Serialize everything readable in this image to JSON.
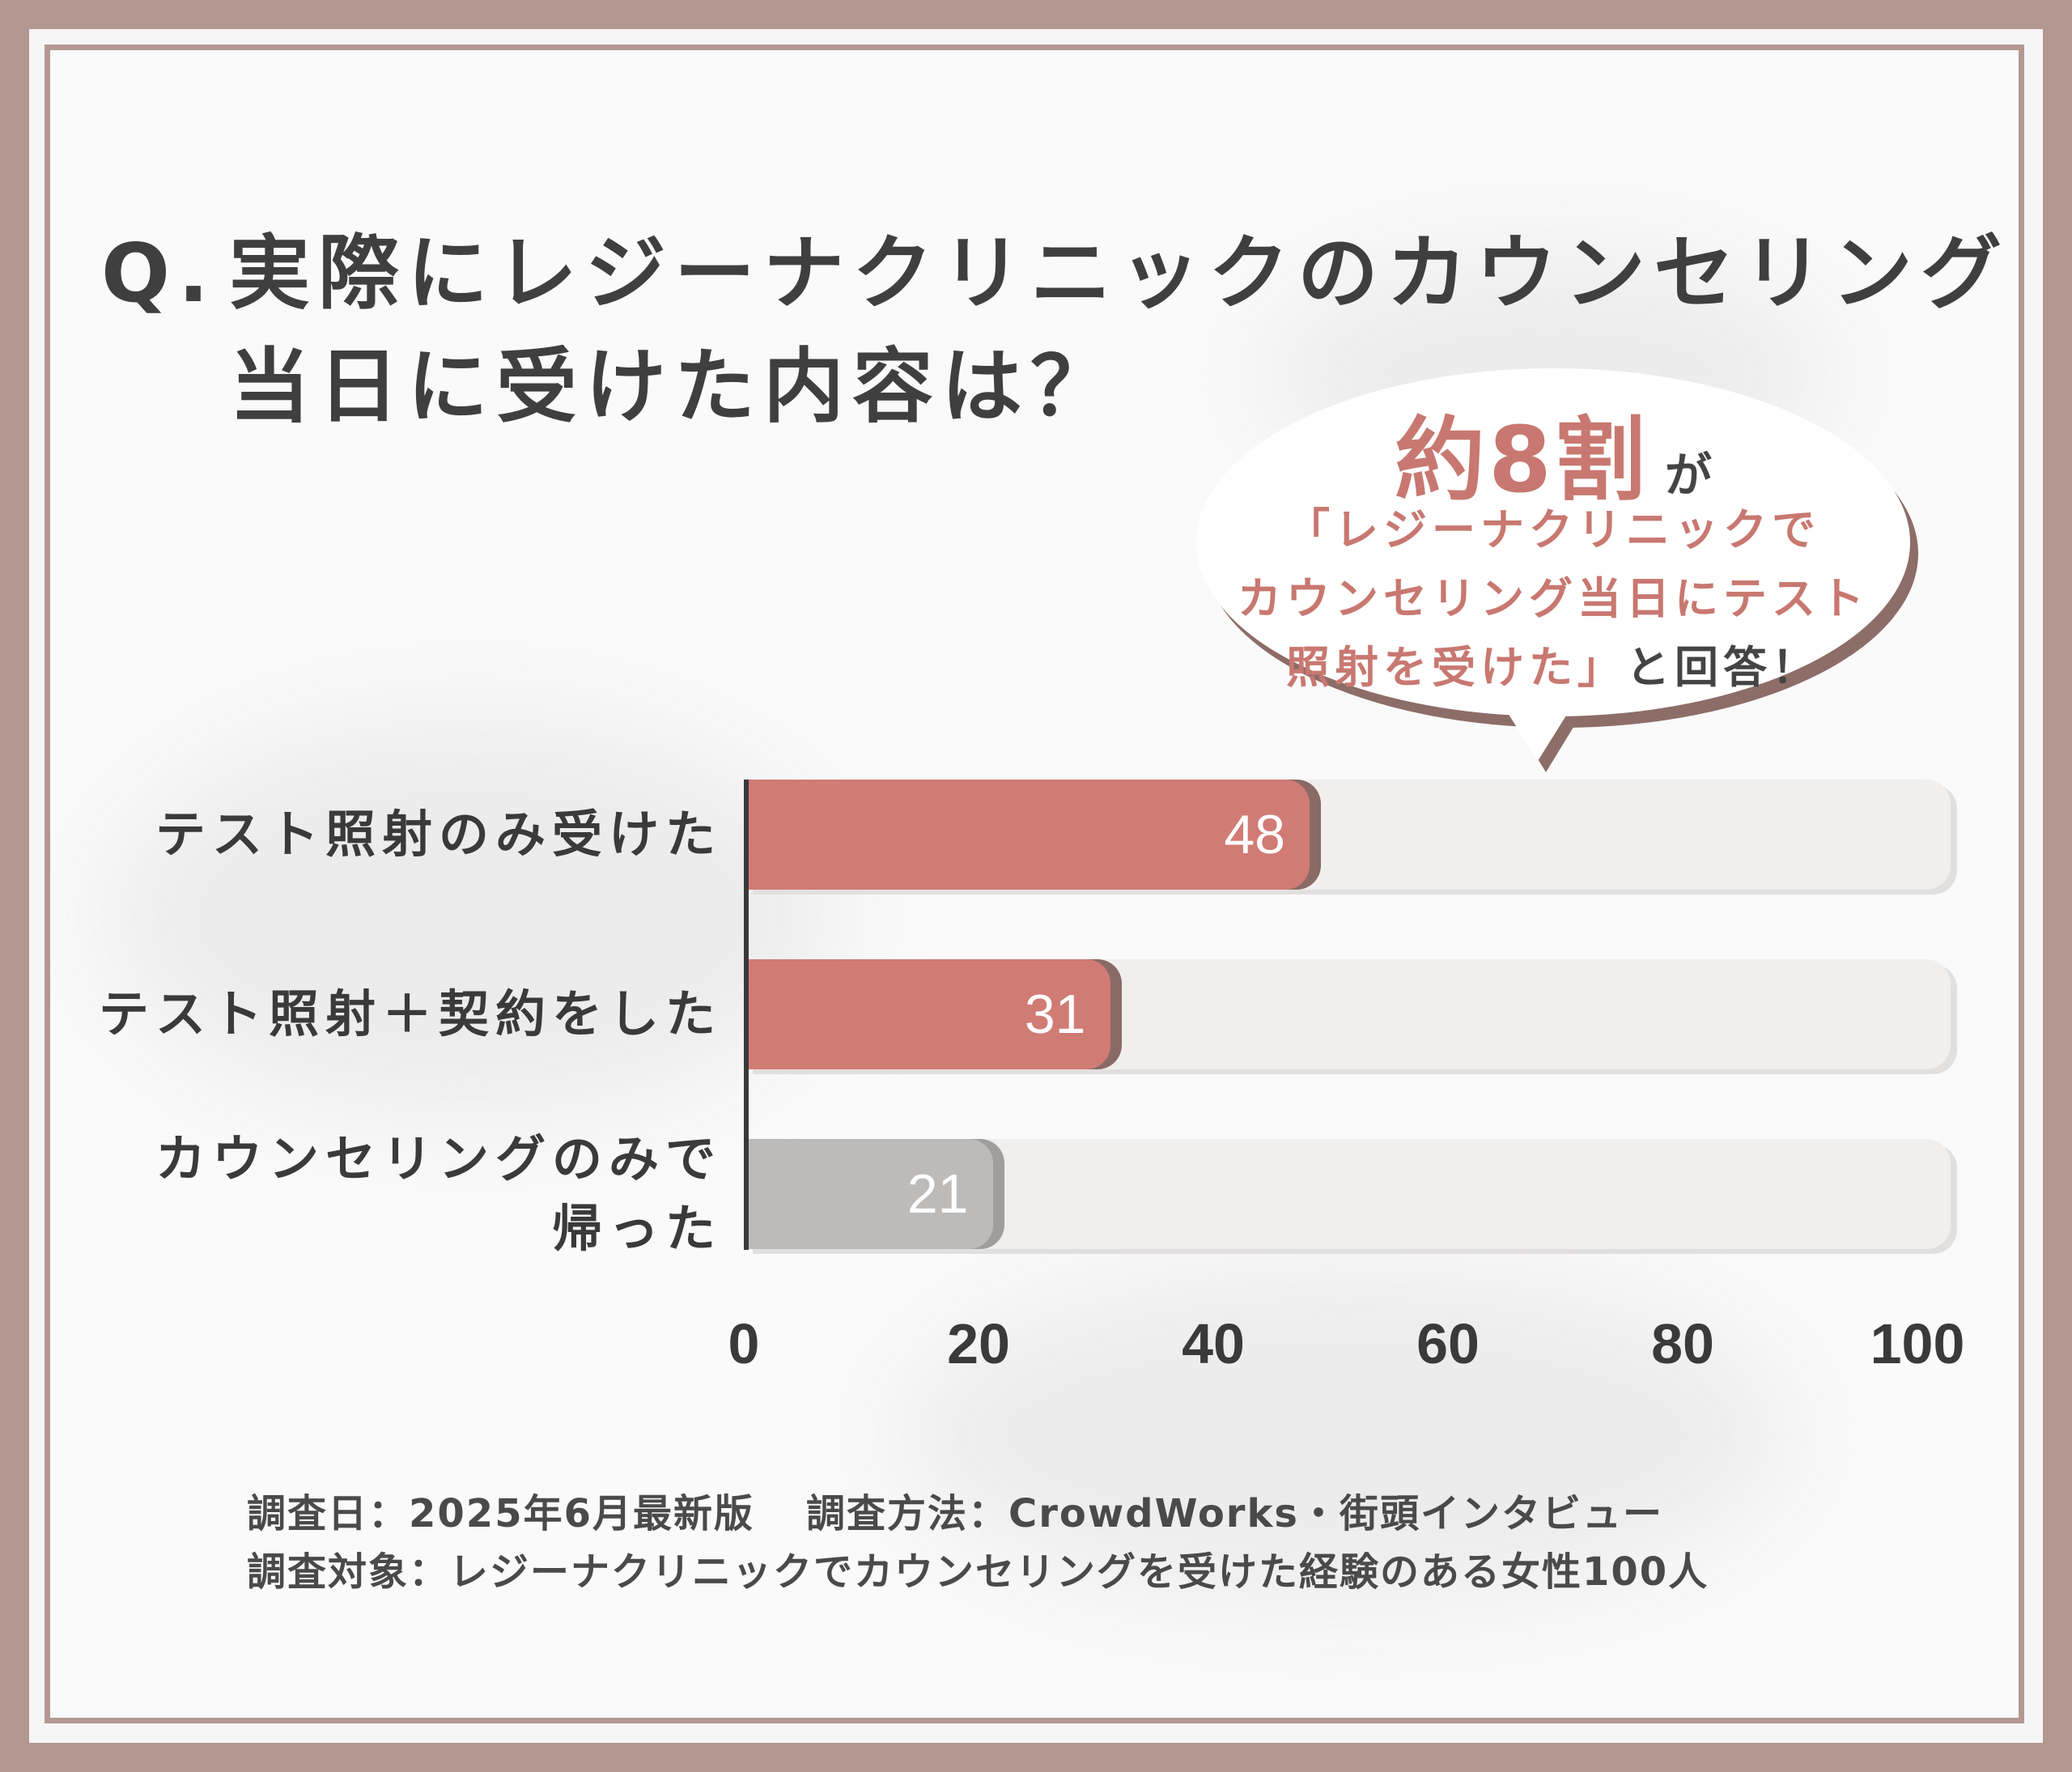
{
  "question": {
    "prefix": "Q.",
    "line1": "実際にレジーナクリニックのカウンセリング",
    "line2": "当日に受けた内容は？"
  },
  "callout": {
    "highlight": "約8割",
    "particle": "が",
    "line1": "「レジーナクリニックで",
    "line2": "カウンセリング当日にテスト",
    "line3_pink": "照射を受けた」",
    "line3_dark": "と回答！"
  },
  "chart_data": {
    "type": "bar",
    "orientation": "horizontal",
    "categories": [
      "テスト照射のみ受けた",
      "テスト照射＋契約をした",
      "カウンセリングのみで帰った"
    ],
    "category_lines": [
      [
        "テスト照射のみ受けた"
      ],
      [
        "テスト照射＋契約をした"
      ],
      [
        "カウンセリングのみで",
        "帰った"
      ]
    ],
    "values": [
      48,
      31,
      21
    ],
    "value_labels": [
      "48",
      "31",
      "21"
    ],
    "bar_colors": [
      "#d17b75",
      "#d17b75",
      "#bdbbba"
    ],
    "xlim": [
      0,
      100
    ],
    "xticks": [
      "0",
      "20",
      "40",
      "60",
      "80",
      "100"
    ],
    "grid": false,
    "legend": "none"
  },
  "footer": {
    "date": "調査日：2025年6月最新版",
    "method": "調査方法：CrowdWorks・街頭インタビュー",
    "target": "調査対象：レジーナクリニックでカウンセリングを受けた経験のある女性100人"
  },
  "colors": {
    "frame": "#b39891",
    "accent": "#d17b75",
    "accent_text": "#c87870",
    "neutral_bar": "#bdbbba",
    "text": "#3a3a3a"
  }
}
